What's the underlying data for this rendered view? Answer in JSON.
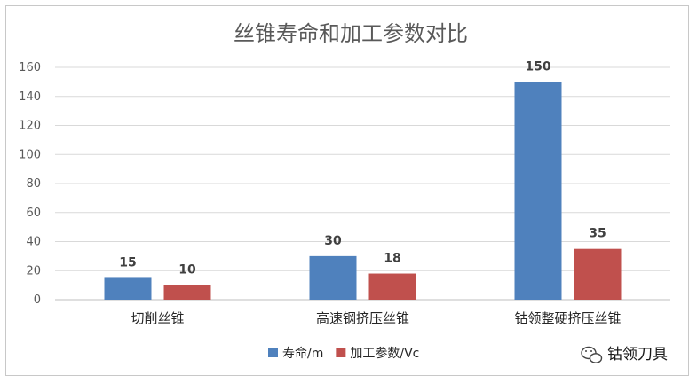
{
  "chart_data": {
    "type": "bar",
    "title": "丝锥寿命和加工参数对比",
    "categories": [
      "切削丝锥",
      "高速钢挤压丝锥",
      "钴领整硬挤压丝锥"
    ],
    "series": [
      {
        "name": "寿命/m",
        "values": [
          15,
          30,
          150
        ],
        "color": "#4f81bd"
      },
      {
        "name": "加工参数/Vc",
        "values": [
          10,
          18,
          35
        ],
        "color": "#c0504d"
      }
    ],
    "ylim": [
      0,
      160
    ],
    "yticks": [
      0,
      20,
      40,
      60,
      80,
      100,
      120,
      140,
      160
    ],
    "grid": true,
    "legend_position": "bottom"
  },
  "watermark": {
    "text": "钴领刀具",
    "icon": "wechat-icon"
  }
}
